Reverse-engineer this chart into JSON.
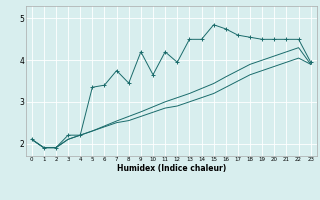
{
  "xlabel": "Humidex (Indice chaleur)",
  "xlim": [
    -0.5,
    23.5
  ],
  "ylim": [
    1.7,
    5.3
  ],
  "xtick_labels": [
    "0",
    "1",
    "2",
    "3",
    "4",
    "5",
    "6",
    "7",
    "8",
    "9",
    "10",
    "11",
    "12",
    "13",
    "14",
    "15",
    "16",
    "17",
    "18",
    "19",
    "20",
    "21",
    "22",
    "23"
  ],
  "xtick_vals": [
    0,
    1,
    2,
    3,
    4,
    5,
    6,
    7,
    8,
    9,
    10,
    11,
    12,
    13,
    14,
    15,
    16,
    17,
    18,
    19,
    20,
    21,
    22,
    23
  ],
  "ytick_vals": [
    2,
    3,
    4,
    5
  ],
  "ytick_labels": [
    "2",
    "3",
    "4",
    "5"
  ],
  "bg_color": "#d8eeee",
  "line_color": "#1a6b6b",
  "grid_color": "#c0dada",
  "line1_x": [
    0,
    1,
    2,
    3,
    4,
    5,
    6,
    7,
    8,
    9,
    10,
    11,
    12,
    13,
    14,
    15,
    16,
    17,
    18,
    19,
    20,
    21,
    22,
    23
  ],
  "line1_y": [
    2.1,
    1.9,
    1.9,
    2.2,
    2.2,
    3.35,
    3.4,
    3.75,
    3.45,
    4.2,
    3.65,
    4.2,
    3.95,
    4.5,
    4.5,
    4.85,
    4.75,
    4.6,
    4.55,
    4.5,
    4.5,
    4.5,
    4.5,
    3.95
  ],
  "line2_x": [
    0,
    1,
    2,
    3,
    4,
    5,
    6,
    7,
    8,
    9,
    10,
    11,
    12,
    13,
    14,
    15,
    16,
    17,
    18,
    19,
    20,
    21,
    22,
    23
  ],
  "line2_y": [
    2.1,
    1.9,
    1.9,
    2.1,
    2.2,
    2.3,
    2.4,
    2.5,
    2.55,
    2.65,
    2.75,
    2.85,
    2.9,
    3.0,
    3.1,
    3.2,
    3.35,
    3.5,
    3.65,
    3.75,
    3.85,
    3.95,
    4.05,
    3.9
  ],
  "line3_x": [
    0,
    1,
    2,
    3,
    4,
    5,
    6,
    7,
    8,
    9,
    10,
    11,
    12,
    13,
    14,
    15,
    16,
    17,
    18,
    19,
    20,
    21,
    22,
    23
  ],
  "line3_y": [
    2.1,
    1.9,
    1.9,
    2.1,
    2.2,
    2.3,
    2.42,
    2.54,
    2.65,
    2.76,
    2.88,
    3.0,
    3.1,
    3.2,
    3.32,
    3.44,
    3.6,
    3.75,
    3.9,
    4.0,
    4.1,
    4.2,
    4.3,
    3.9
  ]
}
